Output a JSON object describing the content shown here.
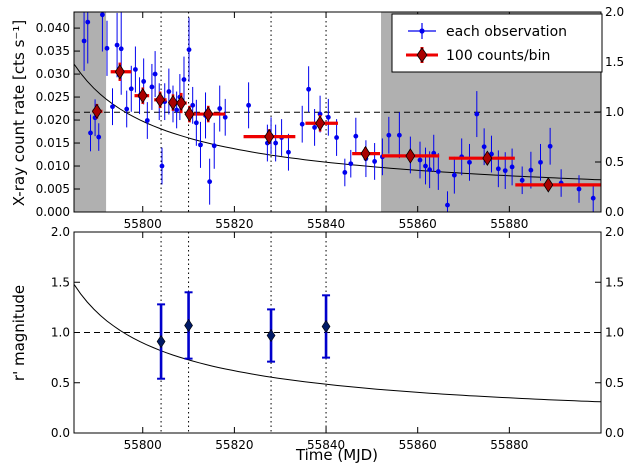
{
  "chart_data": [
    {
      "type": "scatter",
      "xlabel": "",
      "ylabel": "X-ray count rate [cts s⁻¹]",
      "y2ticks": [
        "0.0",
        "0.5",
        "1.0",
        "1.5",
        "2.0"
      ],
      "xlim": [
        55785,
        55900
      ],
      "ylim": [
        0,
        0.0435
      ],
      "xticks": [
        55800,
        55820,
        55840,
        55860,
        55880
      ],
      "yticks": [
        "0.000",
        "0.005",
        "0.010",
        "0.015",
        "0.020",
        "0.025",
        "0.030",
        "0.035",
        "0.040"
      ],
      "grid": false,
      "legend": {
        "placement": "top-right",
        "entries": [
          "each observation",
          "100 counts/bin"
        ]
      },
      "shaded_regions": [
        [
          55785,
          55792
        ],
        [
          55852,
          55900
        ]
      ],
      "vertical_dotted_lines": [
        55804,
        55810,
        55828,
        55840
      ],
      "reference_line_y": 0.0217,
      "decay_model": {
        "description": "power-law decay",
        "x": [
          55785,
          55900
        ],
        "y_start": 0.0322,
        "y_end": 0.007
      },
      "series": [
        {
          "name": "each observation",
          "color": "#0000ee",
          "points": [
            [
              55787.2,
              0.0372,
              0.0065
            ],
            [
              55788.0,
              0.0413,
              0.009
            ],
            [
              55788.6,
              0.0172,
              0.004
            ],
            [
              55789.6,
              0.0205,
              0.004
            ],
            [
              55790.4,
              0.0163,
              0.003
            ],
            [
              55791.2,
              0.0429,
              0.008
            ],
            [
              55792.2,
              0.0356,
              0.006
            ],
            [
              55793.4,
              0.0229,
              0.004
            ],
            [
              55794.4,
              0.0363,
              0.007
            ],
            [
              55795.3,
              0.0355,
              0.01
            ],
            [
              55796.5,
              0.0224,
              0.004
            ],
            [
              55797.5,
              0.0268,
              0.005
            ],
            [
              55798.4,
              0.031,
              0.005
            ],
            [
              55799.3,
              0.0253,
              0.004
            ],
            [
              55800.2,
              0.0284,
              0.005
            ],
            [
              55801.0,
              0.0199,
              0.004
            ],
            [
              55802.0,
              0.0272,
              0.005
            ],
            [
              55802.7,
              0.03,
              0.005
            ],
            [
              55803.6,
              0.024,
              0.004
            ],
            [
              55804.2,
              0.01,
              0.004
            ],
            [
              55804.8,
              0.024,
              0.004
            ],
            [
              55805.7,
              0.0262,
              0.005
            ],
            [
              55806.6,
              0.0235,
              0.004
            ],
            [
              55807.4,
              0.0222,
              0.004
            ],
            [
              55808.1,
              0.025,
              0.005
            ],
            [
              55809.0,
              0.0288,
              0.005
            ],
            [
              55810.1,
              0.0353,
              0.007
            ],
            [
              55810.9,
              0.0232,
              0.004
            ],
            [
              55811.7,
              0.0194,
              0.005
            ],
            [
              55812.6,
              0.0146,
              0.005
            ],
            [
              55813.7,
              0.021,
              0.005
            ],
            [
              55814.6,
              0.0066,
              0.005
            ],
            [
              55815.6,
              0.0144,
              0.005
            ],
            [
              55816.8,
              0.0225,
              0.005
            ],
            [
              55818.0,
              0.0206,
              0.004
            ],
            [
              55823.1,
              0.0232,
              0.005
            ],
            [
              55827.2,
              0.015,
              0.004
            ],
            [
              55828.0,
              0.0166,
              0.004
            ],
            [
              55829.0,
              0.015,
              0.004
            ],
            [
              55830.3,
              0.0162,
              0.004
            ],
            [
              55831.8,
              0.013,
              0.004
            ],
            [
              55834.8,
              0.0191,
              0.004
            ],
            [
              55836.2,
              0.0267,
              0.005
            ],
            [
              55837.5,
              0.0184,
              0.004
            ],
            [
              55838.7,
              0.0213,
              0.004
            ],
            [
              55840.5,
              0.0206,
              0.004
            ],
            [
              55842.3,
              0.0162,
              0.004
            ],
            [
              55844.1,
              0.0086,
              0.003
            ],
            [
              55845.4,
              0.0105,
              0.003
            ],
            [
              55846.5,
              0.0165,
              0.004
            ],
            [
              55848.7,
              0.0116,
              0.004
            ],
            [
              55850.6,
              0.011,
              0.004
            ],
            [
              55852.3,
              0.012,
              0.004
            ],
            [
              55853.7,
              0.0167,
              0.004
            ],
            [
              55856.0,
              0.0167,
              0.005
            ],
            [
              55858.4,
              0.0124,
              0.004
            ],
            [
              55860.5,
              0.0113,
              0.004
            ],
            [
              55861.7,
              0.01,
              0.004
            ],
            [
              55862.6,
              0.0092,
              0.004
            ],
            [
              55863.5,
              0.0128,
              0.004
            ],
            [
              55864.5,
              0.0088,
              0.004
            ],
            [
              55866.5,
              0.0015,
              0.003
            ],
            [
              55868.0,
              0.008,
              0.004
            ],
            [
              55869.6,
              0.012,
              0.004
            ],
            [
              55871.3,
              0.0108,
              0.004
            ],
            [
              55872.9,
              0.0213,
              0.005
            ],
            [
              55874.5,
              0.0142,
              0.004
            ],
            [
              55876.1,
              0.0126,
              0.004
            ],
            [
              55877.6,
              0.0094,
              0.004
            ],
            [
              55879.1,
              0.009,
              0.004
            ],
            [
              55880.6,
              0.0098,
              0.004
            ],
            [
              55882.8,
              0.0069,
              0.003
            ],
            [
              55884.7,
              0.0091,
              0.004
            ],
            [
              55886.8,
              0.0108,
              0.004
            ],
            [
              55888.9,
              0.0143,
              0.004
            ],
            [
              55891.3,
              0.0063,
              0.003
            ],
            [
              55895.2,
              0.005,
              0.003
            ],
            [
              55898.3,
              0.003,
              0.003
            ]
          ]
        },
        {
          "name": "100 counts/bin",
          "color": "#ee0000",
          "points": [
            [
              55790.0,
              0.0219,
              0.0016,
              55789.0,
              55791.2
            ],
            [
              55795.0,
              0.0305,
              0.002,
              55793.0,
              55797.5
            ],
            [
              55800.0,
              0.0253,
              0.0018,
              55798.2,
              55801.4
            ],
            [
              55803.8,
              0.0244,
              0.0018,
              55802.5,
              55805.2
            ],
            [
              55806.6,
              0.0238,
              0.0018,
              55805.6,
              55807.6
            ],
            [
              55808.4,
              0.0237,
              0.0022,
              55807.7,
              55809.6
            ],
            [
              55810.2,
              0.0213,
              0.0018,
              55809.6,
              55811.6
            ],
            [
              55814.3,
              0.0213,
              0.0018,
              55811.8,
              55818.0
            ],
            [
              55827.6,
              0.0164,
              0.0016,
              55822.0,
              55833.3
            ],
            [
              55838.7,
              0.0193,
              0.0018,
              55835.5,
              55842.6
            ],
            [
              55848.6,
              0.0127,
              0.0014,
              55845.7,
              55851.8
            ],
            [
              55858.4,
              0.0122,
              0.0013,
              55852.2,
              55864.7
            ],
            [
              55875.2,
              0.0117,
              0.0013,
              55866.8,
              55881.2
            ],
            [
              55888.5,
              0.0059,
              0.001,
              55881.3,
              55900.0
            ]
          ]
        }
      ]
    },
    {
      "type": "scatter",
      "xlabel": "Time (MJD)",
      "ylabel": "r' magnitude",
      "xlim": [
        55785,
        55900
      ],
      "ylim": [
        0,
        2.0
      ],
      "xticks": [
        55800,
        55820,
        55840,
        55860,
        55880
      ],
      "yticks": [
        "0.0",
        "0.5",
        "1.0",
        "1.5",
        "2.0"
      ],
      "grid": false,
      "vertical_dotted_lines": [
        55804,
        55810,
        55828,
        55840
      ],
      "reference_line_y": 1.0,
      "decay_model": {
        "description": "power-law decay",
        "x": [
          55785,
          55900
        ],
        "y_start": 1.48,
        "y_end": 0.31
      },
      "series": [
        {
          "name": "",
          "color": "#0000ee",
          "points": [
            [
              55804.0,
              0.91,
              0.37
            ],
            [
              55810.0,
              1.07,
              0.33
            ],
            [
              55828.0,
              0.97,
              0.26
            ],
            [
              55840.0,
              1.06,
              0.31
            ]
          ]
        }
      ]
    }
  ]
}
